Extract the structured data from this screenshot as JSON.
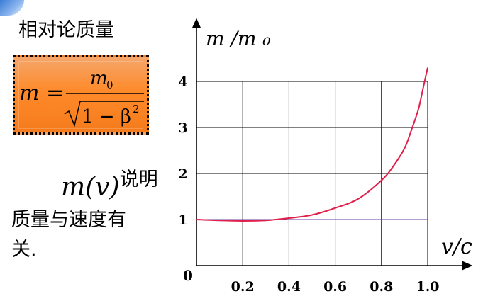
{
  "slide": {
    "title": "相对论质量",
    "formula_lhs": "m =",
    "formula_num": "m",
    "formula_num_sub": "0",
    "formula_den": "1 − β",
    "formula_den_sup": "2",
    "desc_math": "m(v)",
    "desc_line1": "说明",
    "desc_line2": "质量与速度有",
    "desc_line3": "关."
  },
  "chart_data": {
    "type": "line",
    "ylabel": "m /m ₀",
    "xlabel": "v/c",
    "origin_label": "0",
    "xlim": [
      0,
      1.05
    ],
    "ylim": [
      0,
      4.5
    ],
    "grid": true,
    "x_ticks": [
      0.2,
      0.4,
      0.6,
      0.8,
      1.0
    ],
    "x_tick_labels": [
      "0.2",
      "0.4",
      "0.6",
      "0.8",
      "1.0"
    ],
    "y_ticks": [
      1,
      2,
      3,
      4
    ],
    "y_tick_labels": [
      "1",
      "2",
      "3",
      "4"
    ],
    "series": [
      {
        "color": "#e0204a",
        "x": [
          0,
          0.1,
          0.2,
          0.3,
          0.4,
          0.5,
          0.6,
          0.7,
          0.8,
          0.85,
          0.9,
          0.93,
          0.96,
          0.98,
          1.0
        ],
        "y": [
          1.0,
          0.98,
          0.97,
          0.98,
          1.03,
          1.1,
          1.25,
          1.45,
          1.85,
          2.15,
          2.55,
          2.95,
          3.4,
          3.85,
          4.3
        ]
      }
    ]
  }
}
